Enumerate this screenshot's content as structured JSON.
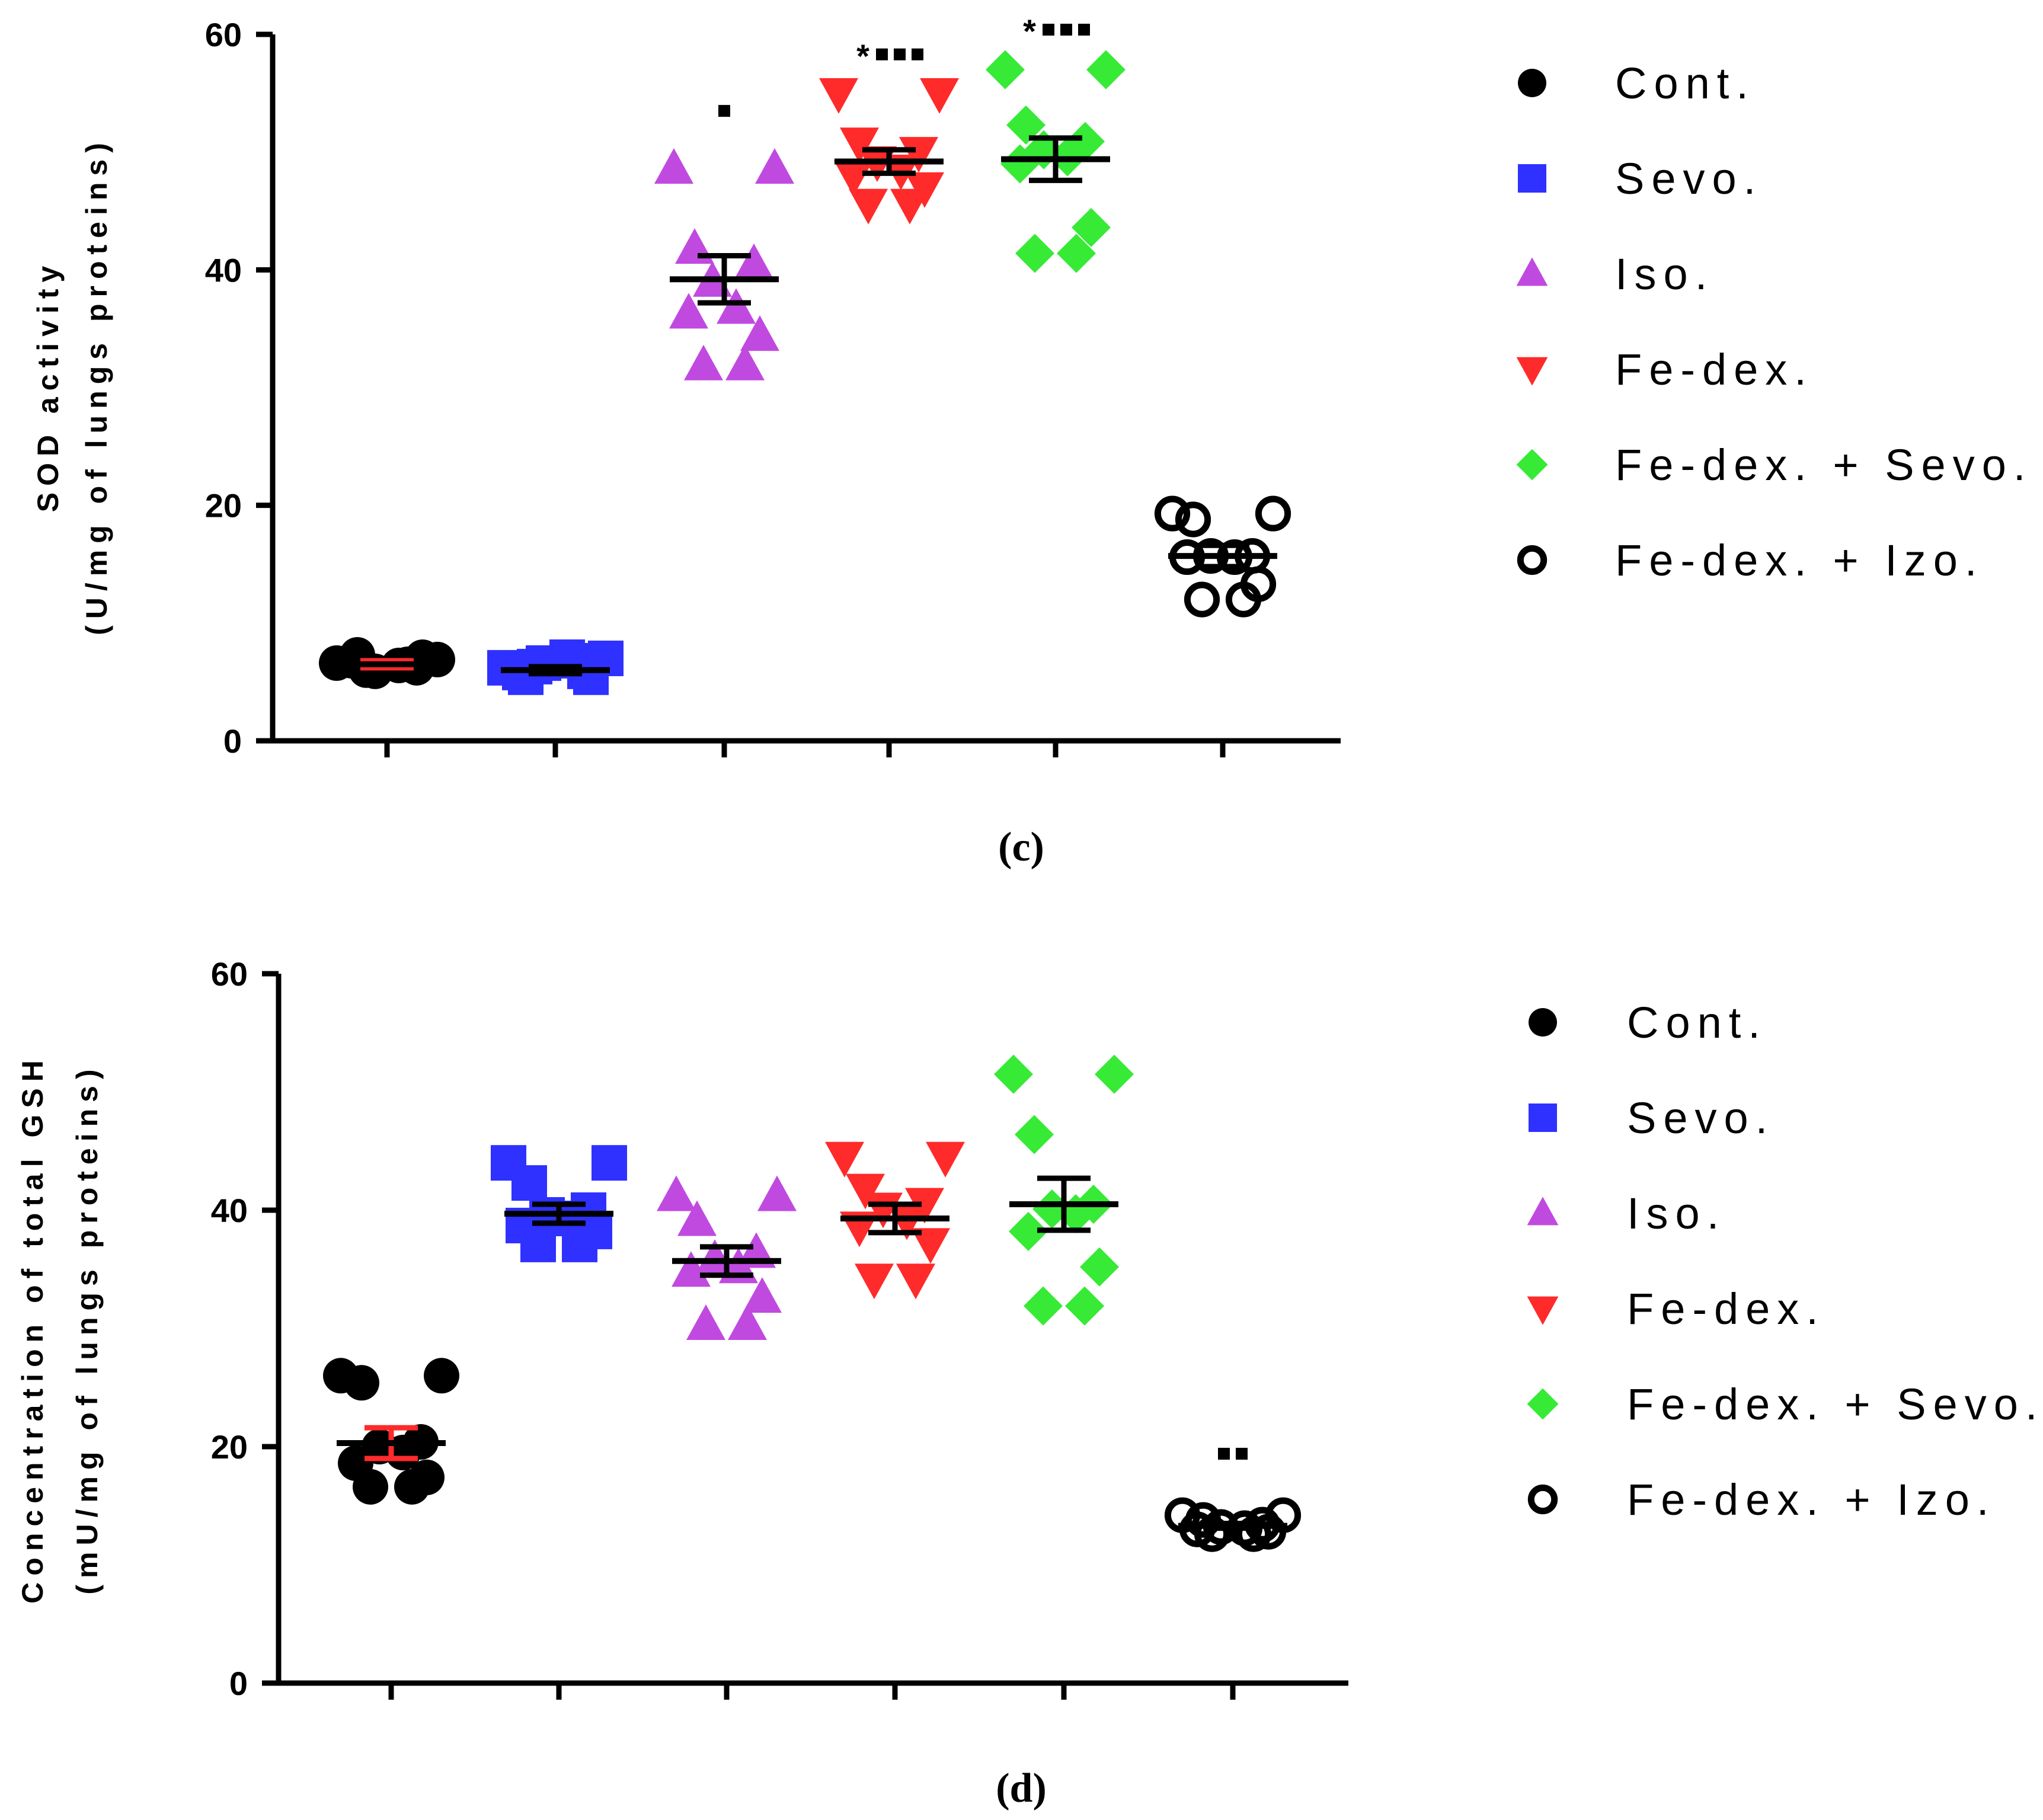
{
  "chart_data": [
    {
      "panel": "c",
      "type": "scatter",
      "ylabel_line1": "SOD activity",
      "ylabel_line2": "(U/mg of lungs proteins)",
      "ylim": [
        0,
        60
      ],
      "yticks": [
        "0",
        "20",
        "40",
        "60"
      ],
      "legend_position": "right",
      "series": [
        {
          "name": "Cont.",
          "marker": "circle",
          "color": "#000000",
          "values": [
            6.6,
            6.9,
            7.3,
            6.2,
            5.9,
            6.4,
            6.8,
            7.1,
            6.0,
            6.5
          ],
          "mean": 6.5,
          "sem": 0.3,
          "mean_color": "#000000",
          "sem_color": "#ff2a2a"
        },
        {
          "name": "Sevo.",
          "marker": "square",
          "color": "#2e31ff",
          "values": [
            6.2,
            7.0,
            5.4,
            5.9,
            6.6,
            7.1,
            5.8,
            5.4,
            6.3,
            6.8
          ],
          "mean": 6.0,
          "sem": 0.3,
          "mean_color": "#000000",
          "sem_color": "#000000"
        },
        {
          "name": "Iso.",
          "marker": "triangle-up",
          "color": "#c04ae0",
          "values": [
            48.6,
            48.6,
            41.8,
            40.5,
            39.0,
            36.7,
            36.3,
            34.4,
            31.9,
            31.9
          ],
          "mean": 39.2,
          "sem": 2.0,
          "mean_color": "#000000",
          "sem_color": "#000000"
        },
        {
          "name": "Fe-dex.",
          "marker": "triangle-down",
          "color": "#ff2a2a",
          "values": [
            55.0,
            55.0,
            50.8,
            50.0,
            49.2,
            48.5,
            48.0,
            47.0,
            45.6,
            45.6
          ],
          "mean": 49.2,
          "sem": 1.0,
          "mean_color": "#000000",
          "sem_color": "#000000"
        },
        {
          "name": "Fe-dex. + Sevo.",
          "marker": "diamond",
          "color": "#36ea36",
          "values": [
            57.0,
            57.0,
            52.3,
            50.9,
            50.2,
            49.6,
            49.0,
            43.6,
            41.4,
            41.4
          ],
          "mean": 49.4,
          "sem": 1.8,
          "mean_color": "#000000",
          "sem_color": "#000000"
        },
        {
          "name": "Fe-dex. + Izo.",
          "marker": "open-circle",
          "color": "#000000",
          "values": [
            19.3,
            19.3,
            18.8,
            15.7,
            15.7,
            15.6,
            15.6,
            13.3,
            12.0,
            12.0
          ],
          "mean": 15.7,
          "sem": 0.9,
          "mean_color": "#000000",
          "sem_color": "#000000"
        }
      ],
      "annotations": [
        {
          "category": 2,
          "y": 53.5,
          "text": "",
          "squares": 1
        },
        {
          "category": 3,
          "y": 58.3,
          "text": "*",
          "squares": 3
        },
        {
          "category": 4,
          "y": 60.4,
          "text": "*",
          "squares": 3
        }
      ]
    },
    {
      "panel": "d",
      "type": "scatter",
      "ylabel_line1": "Concentration of total GSH",
      "ylabel_line2": "(mU/mg of lungs proteins)",
      "ylim": [
        0,
        60
      ],
      "yticks": [
        "0",
        "20",
        "40",
        "60"
      ],
      "legend_position": "right",
      "series": [
        {
          "name": "Cont.",
          "marker": "circle",
          "color": "#000000",
          "values": [
            26.0,
            26.0,
            25.4,
            20.4,
            20.0,
            19.5,
            18.6,
            17.4,
            16.6,
            16.6
          ],
          "mean": 20.3,
          "sem": 1.3,
          "mean_color": "#000000",
          "sem_color": "#ff2a2a"
        },
        {
          "name": "Sevo.",
          "marker": "square",
          "color": "#2e31ff",
          "values": [
            44.0,
            44.0,
            42.3,
            40.0,
            39.6,
            39.3,
            38.7,
            38.2,
            37.1,
            37.1
          ],
          "mean": 39.7,
          "sem": 0.8,
          "mean_color": "#000000",
          "sem_color": "#000000"
        },
        {
          "name": "Iso.",
          "marker": "triangle-up",
          "color": "#c04ae0",
          "values": [
            41.2,
            41.2,
            39.1,
            36.4,
            35.8,
            35.1,
            34.8,
            32.6,
            30.3,
            30.3
          ],
          "mean": 35.7,
          "sem": 1.2,
          "mean_color": "#000000",
          "sem_color": "#000000"
        },
        {
          "name": "Fe-dex.",
          "marker": "triangle-down",
          "color": "#ff2a2a",
          "values": [
            44.5,
            44.5,
            41.8,
            40.6,
            40.2,
            39.2,
            38.6,
            37.2,
            34.2,
            34.2
          ],
          "mean": 39.3,
          "sem": 1.2,
          "mean_color": "#000000",
          "sem_color": "#000000"
        },
        {
          "name": "Fe-dex. + Sevo.",
          "marker": "diamond",
          "color": "#36ea36",
          "values": [
            51.5,
            51.5,
            46.4,
            40.5,
            40.1,
            39.7,
            38.2,
            35.2,
            31.9,
            31.9
          ],
          "mean": 40.5,
          "sem": 2.2,
          "mean_color": "#000000",
          "sem_color": "#000000"
        },
        {
          "name": "Fe-dex. + Izo.",
          "marker": "open-circle",
          "color": "#000000",
          "values": [
            14.2,
            14.2,
            13.8,
            13.4,
            13.2,
            13.1,
            13.0,
            12.8,
            12.6,
            12.6
          ],
          "mean": 13.3,
          "sem": 0.2,
          "mean_color": "#000000",
          "sem_color": "#000000"
        }
      ],
      "annotations": [
        {
          "category": 5,
          "y": 19.4,
          "text": "",
          "squares": 2
        }
      ]
    }
  ]
}
